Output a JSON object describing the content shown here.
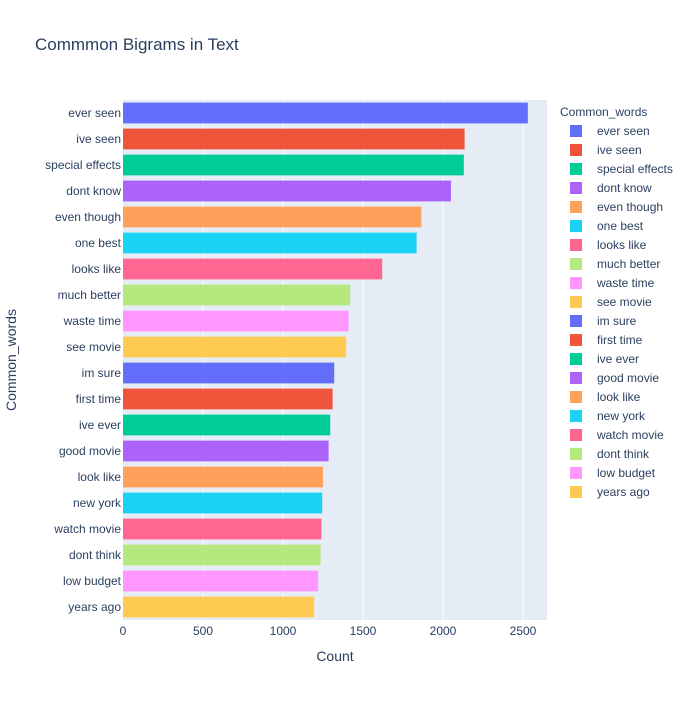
{
  "chart_data": {
    "type": "bar",
    "orientation": "horizontal",
    "title": "Commmon Bigrams in Text",
    "xlabel": "Count",
    "ylabel": "Common_words",
    "legend_title": "Common_words",
    "legend_position": "right",
    "xlim": [
      0,
      2650
    ],
    "xticks": [
      0,
      500,
      1000,
      1500,
      2000,
      2500
    ],
    "grid": true,
    "categories": [
      "ever seen",
      "ive seen",
      "special effects",
      "dont know",
      "even though",
      "one best",
      "looks like",
      "much better",
      "waste time",
      "see movie",
      "im sure",
      "first time",
      "ive ever",
      "good movie",
      "look like",
      "new york",
      "watch movie",
      "dont think",
      "low budget",
      "years ago"
    ],
    "values": [
      2530,
      2135,
      2130,
      2050,
      1865,
      1835,
      1620,
      1420,
      1410,
      1395,
      1320,
      1310,
      1295,
      1285,
      1250,
      1245,
      1240,
      1235,
      1220,
      1195
    ],
    "colors": [
      "#636efa",
      "#EF553B",
      "#00cc96",
      "#ab63fa",
      "#FFA15A",
      "#19d3f3",
      "#FF6692",
      "#B6E880",
      "#FF97FF",
      "#FECB52",
      "#636efa",
      "#EF553B",
      "#00cc96",
      "#ab63fa",
      "#FFA15A",
      "#19d3f3",
      "#FF6692",
      "#B6E880",
      "#FF97FF",
      "#FECB52"
    ]
  }
}
